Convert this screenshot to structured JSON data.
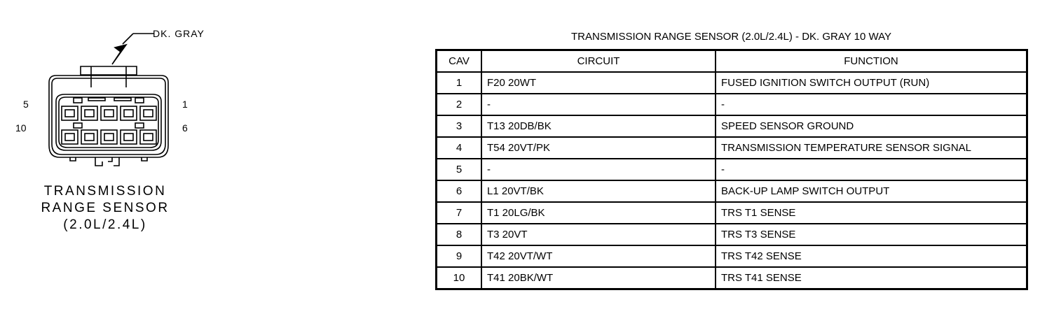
{
  "diagram": {
    "color_label": "DK. GRAY",
    "pin_labels": {
      "top_left": "5",
      "top_right": "1",
      "bottom_left": "10",
      "bottom_right": "6"
    },
    "caption": [
      "TRANSMISSION",
      "RANGE SENSOR",
      "(2.0L/2.4L)"
    ]
  },
  "table": {
    "title": "TRANSMISSION RANGE SENSOR (2.0L/2.4L) - DK. GRAY 10 WAY",
    "headers": [
      "CAV",
      "CIRCUIT",
      "FUNCTION"
    ],
    "rows": [
      [
        "1",
        "F20 20WT",
        "FUSED IGNITION SWITCH OUTPUT (RUN)"
      ],
      [
        "2",
        "-",
        "-"
      ],
      [
        "3",
        "T13 20DB/BK",
        "SPEED SENSOR GROUND"
      ],
      [
        "4",
        "T54 20VT/PK",
        "TRANSMISSION TEMPERATURE SENSOR SIGNAL"
      ],
      [
        "5",
        "-",
        "-"
      ],
      [
        "6",
        "L1 20VT/BK",
        "BACK-UP LAMP SWITCH OUTPUT"
      ],
      [
        "7",
        "T1 20LG/BK",
        "TRS T1 SENSE"
      ],
      [
        "8",
        "T3 20VT",
        "TRS T3 SENSE"
      ],
      [
        "9",
        "T42 20VT/WT",
        "TRS T42 SENSE"
      ],
      [
        "10",
        "T41 20BK/WT",
        "TRS T41 SENSE"
      ]
    ]
  }
}
